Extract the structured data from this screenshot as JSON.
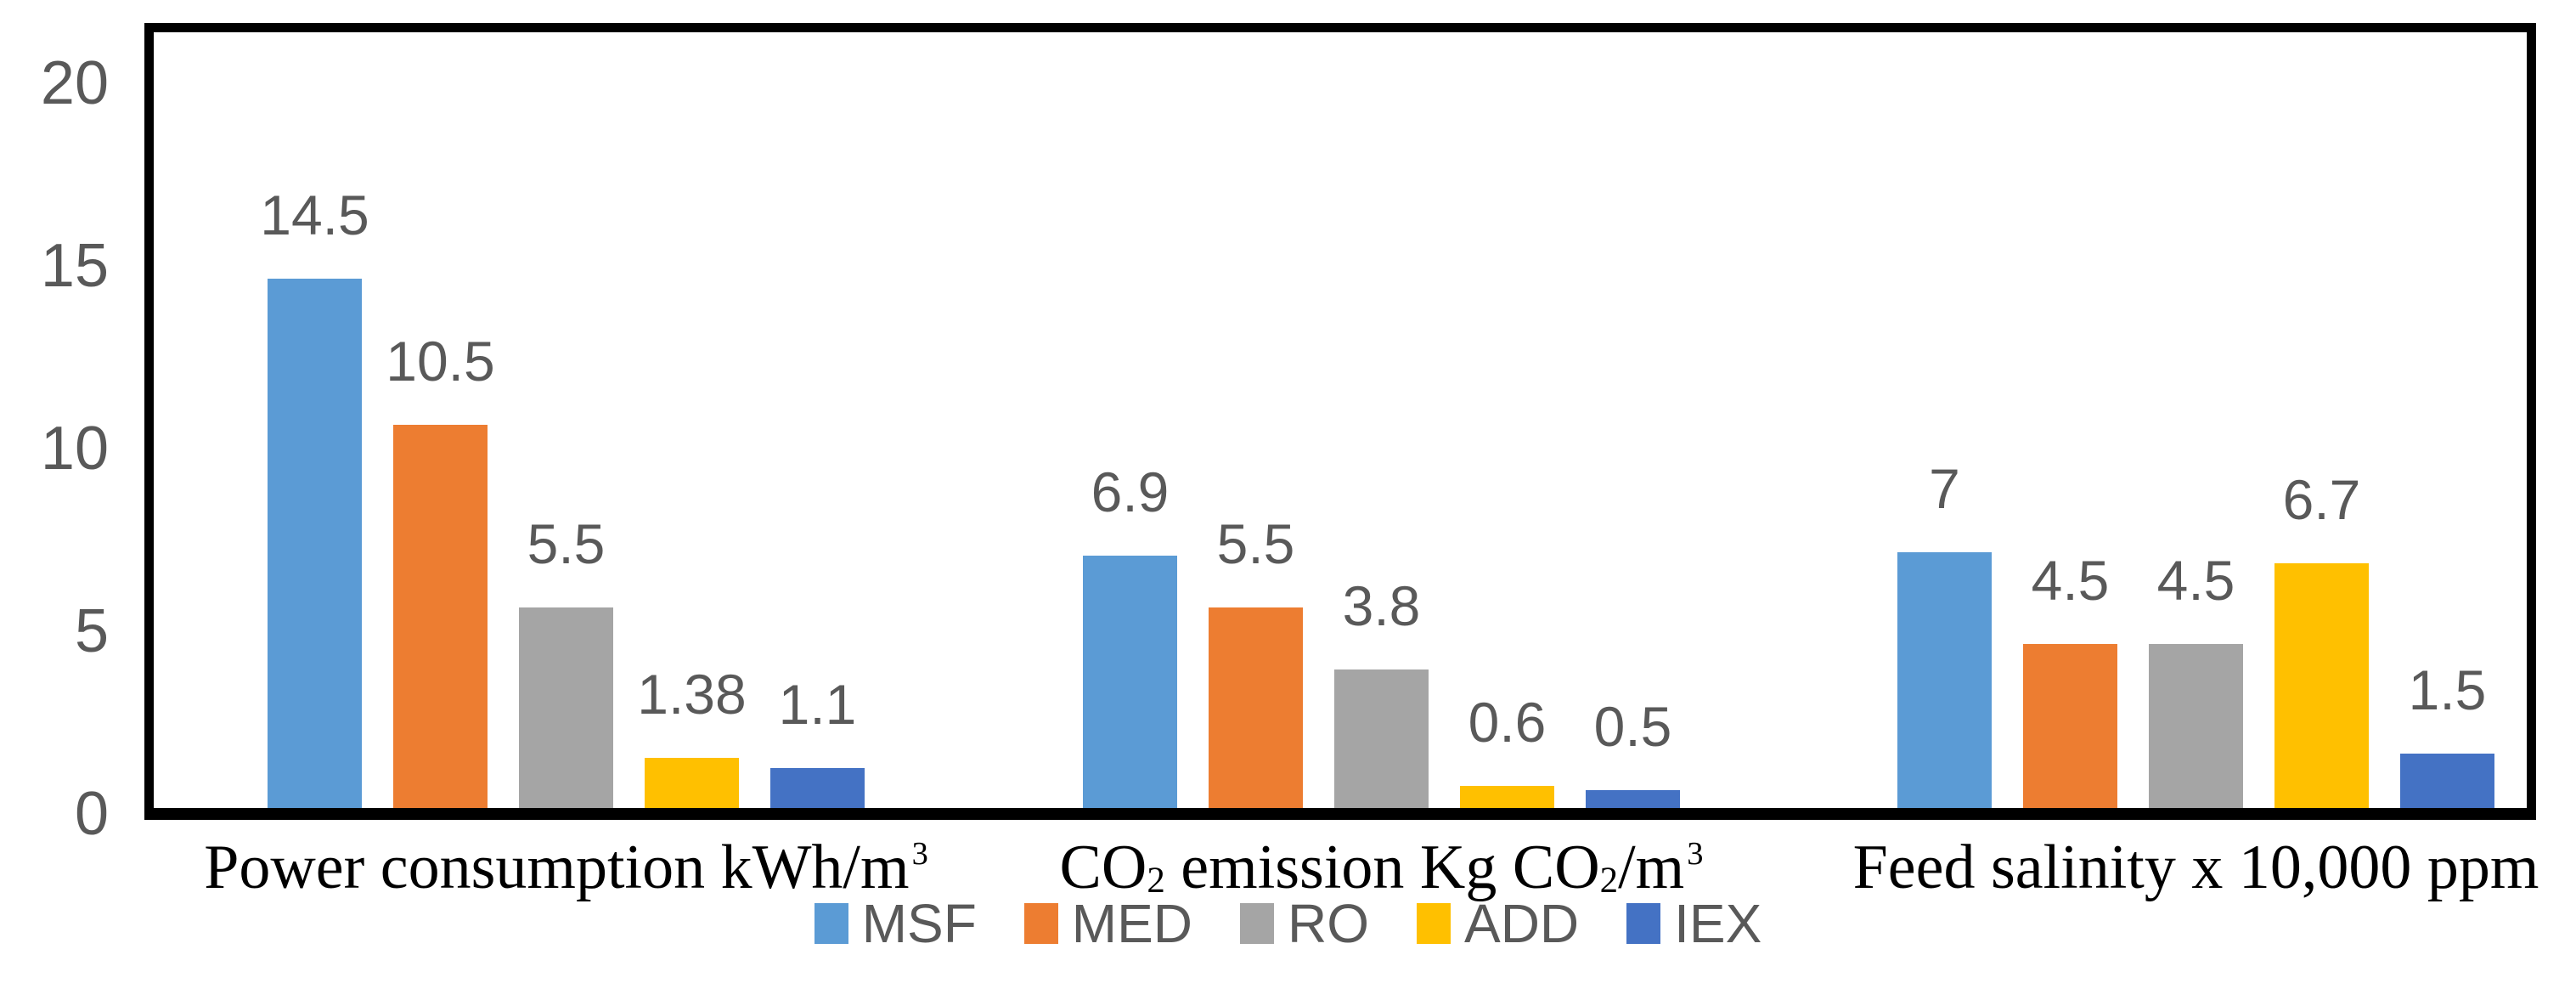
{
  "chart_data": {
    "type": "bar",
    "title": "",
    "y_axis": {
      "min": 0,
      "max": 20,
      "tick_interval": 5,
      "ticks": [
        "0",
        "5",
        "10",
        "15",
        "20"
      ]
    },
    "categories": [
      {
        "text": "Power consumption kWh/m³",
        "parts": [
          {
            "t": "Power consumption kWh/m"
          },
          {
            "t": "3",
            "sup": true
          }
        ]
      },
      {
        "text": "CO₂ emission Kg CO₂/m³",
        "parts": [
          {
            "t": "CO"
          },
          {
            "t": "2",
            "sub": true
          },
          {
            "t": " emission Kg CO"
          },
          {
            "t": "2",
            "sub": true
          },
          {
            "t": "/m"
          },
          {
            "t": "3",
            "sup": true
          }
        ]
      },
      {
        "text": "Feed salinity x 10,000 ppm",
        "parts": [
          {
            "t": "Feed salinity x 10,000 ppm"
          }
        ]
      }
    ],
    "series": [
      {
        "name": "MSF",
        "color": "#5B9BD5",
        "values": [
          14.5,
          6.9,
          7
        ],
        "labels": [
          "14.5",
          "6.9",
          "7"
        ]
      },
      {
        "name": "MED",
        "color": "#ED7D31",
        "values": [
          10.5,
          5.5,
          4.5
        ],
        "labels": [
          "10.5",
          "5.5",
          "4.5"
        ]
      },
      {
        "name": "RO",
        "color": "#A5A5A5",
        "values": [
          5.5,
          3.8,
          4.5
        ],
        "labels": [
          "5.5",
          "3.8",
          "4.5"
        ]
      },
      {
        "name": "ADD",
        "color": "#FFC000",
        "values": [
          1.38,
          0.6,
          6.7
        ],
        "labels": [
          "1.38",
          "0.6",
          "6.7"
        ]
      },
      {
        "name": "IEX",
        "color": "#4472C4",
        "values": [
          1.1,
          0.5,
          1.5
        ],
        "labels": [
          "1.1",
          "0.5",
          "1.5"
        ]
      }
    ],
    "legend": {
      "position": "bottom",
      "entries": [
        "MSF",
        "MED",
        "RO",
        "ADD",
        "IEX"
      ]
    },
    "styles": {
      "label_color": "#595959",
      "axis_color": "#000000",
      "plot_background": "#FFFFFF"
    }
  }
}
